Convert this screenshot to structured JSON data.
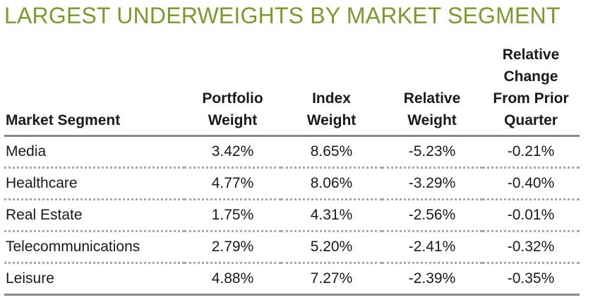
{
  "title": "LARGEST UNDERWEIGHTS BY MARKET SEGMENT",
  "colors": {
    "title": "#7a9a2a",
    "rule": "#8a8a8a"
  },
  "headers": [
    "Market Segment",
    "Portfolio Weight",
    "Index Weight",
    "Relative Weight",
    "Relative Change From Prior Quarter"
  ],
  "rows": [
    {
      "segment": "Media",
      "portfolio_weight": "3.42%",
      "index_weight": "8.65%",
      "relative_weight": "-5.23%",
      "relative_change": "-0.21%"
    },
    {
      "segment": "Healthcare",
      "portfolio_weight": "4.77%",
      "index_weight": "8.06%",
      "relative_weight": "-3.29%",
      "relative_change": "-0.40%"
    },
    {
      "segment": "Real Estate",
      "portfolio_weight": "1.75%",
      "index_weight": "4.31%",
      "relative_weight": "-2.56%",
      "relative_change": "-0.01%"
    },
    {
      "segment": "Telecommunications",
      "portfolio_weight": "2.79%",
      "index_weight": "5.20%",
      "relative_weight": "-2.41%",
      "relative_change": "-0.32%"
    },
    {
      "segment": "Leisure",
      "portfolio_weight": "4.88%",
      "index_weight": "7.27%",
      "relative_weight": "-2.39%",
      "relative_change": "-0.35%"
    }
  ]
}
